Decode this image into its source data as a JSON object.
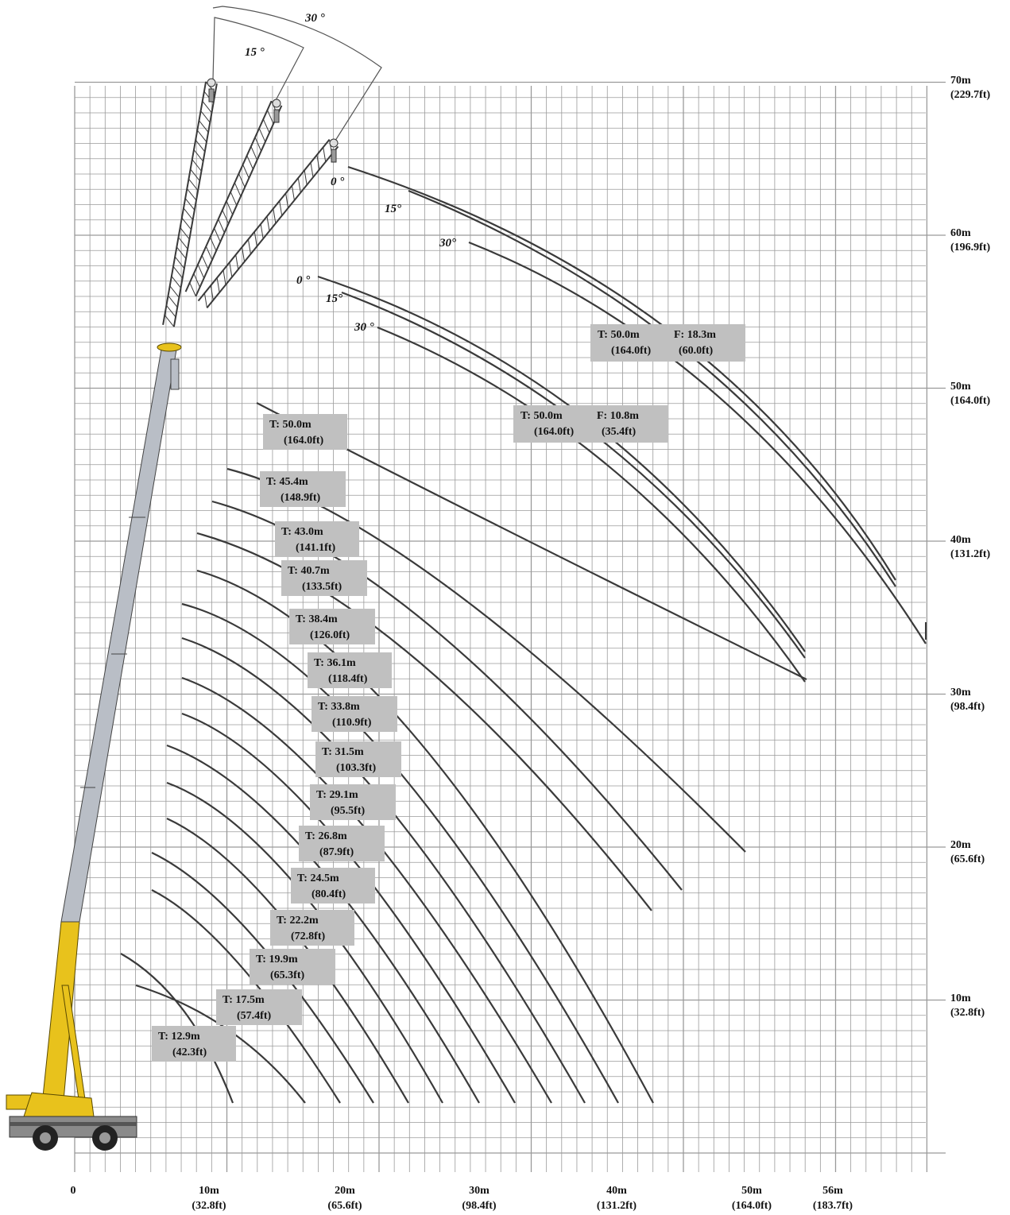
{
  "diagram": {
    "colors": {
      "grid": "#9a9a9a",
      "curve": "#3a3a3a",
      "label_box": "#c0c0c0",
      "boom": "#b9bec6",
      "crane_body": "#e8c21c",
      "lattice": "#3a3a3a"
    },
    "x_axis": [
      {
        "main": "0",
        "sub": ""
      },
      {
        "main": "10m",
        "sub": "(32.8ft)"
      },
      {
        "main": "20m",
        "sub": "(65.6ft)"
      },
      {
        "main": "30m",
        "sub": "(98.4ft)"
      },
      {
        "main": "40m",
        "sub": "(131.2ft)"
      },
      {
        "main": "50m",
        "sub": "(164.0ft)"
      },
      {
        "main": "56m",
        "sub": "(183.7ft)"
      }
    ],
    "y_axis": [
      {
        "main": "70m",
        "sub": "(229.7ft)"
      },
      {
        "main": "60m",
        "sub": "(196.9ft)"
      },
      {
        "main": "50m",
        "sub": "(164.0ft)"
      },
      {
        "main": "40m",
        "sub": "(131.2ft)"
      },
      {
        "main": "30m",
        "sub": "(98.4ft)"
      },
      {
        "main": "20m",
        "sub": "(65.6ft)"
      },
      {
        "main": "10m",
        "sub": "(32.8ft)"
      }
    ],
    "telescopic_boom_labels": [
      {
        "l1": "T: 50.0m",
        "l2": "(164.0ft)"
      },
      {
        "l1": "T: 45.4m",
        "l2": "(148.9ft)"
      },
      {
        "l1": "T: 43.0m",
        "l2": "(141.1ft)"
      },
      {
        "l1": "T: 40.7m",
        "l2": "(133.5ft)"
      },
      {
        "l1": "T: 38.4m",
        "l2": "(126.0ft)"
      },
      {
        "l1": "T: 36.1m",
        "l2": "(118.4ft)"
      },
      {
        "l1": "T: 33.8m",
        "l2": "(110.9ft)"
      },
      {
        "l1": "T: 31.5m",
        "l2": "(103.3ft)"
      },
      {
        "l1": "T: 29.1m",
        "l2": "(95.5ft)"
      },
      {
        "l1": "T: 26.8m",
        "l2": "(87.9ft)"
      },
      {
        "l1": "T: 24.5m",
        "l2": "(80.4ft)"
      },
      {
        "l1": "T: 22.2m",
        "l2": "(72.8ft)"
      },
      {
        "l1": "T: 19.9m",
        "l2": "(65.3ft)"
      },
      {
        "l1": "T: 17.5m",
        "l2": "(57.4ft)"
      },
      {
        "l1": "T: 12.9m",
        "l2": "(42.3ft)"
      }
    ],
    "fly_jib_labels": [
      {
        "l1": "T: 50.0m",
        "l1b": "F: 18.3m",
        "l2": "(164.0ft)",
        "l2b": "(60.0ft)"
      },
      {
        "l1": "T: 50.0m",
        "l1b": "F: 10.8m",
        "l2": "(164.0ft)",
        "l2b": "(35.4ft)"
      }
    ],
    "jib_angles": {
      "top_30": "30 °",
      "top_15": "15 °",
      "long_0": "0 °",
      "long_15": "15°",
      "long_30": "30°",
      "short_0": "0 °",
      "short_15": "15°",
      "short_30": "30 °"
    }
  }
}
